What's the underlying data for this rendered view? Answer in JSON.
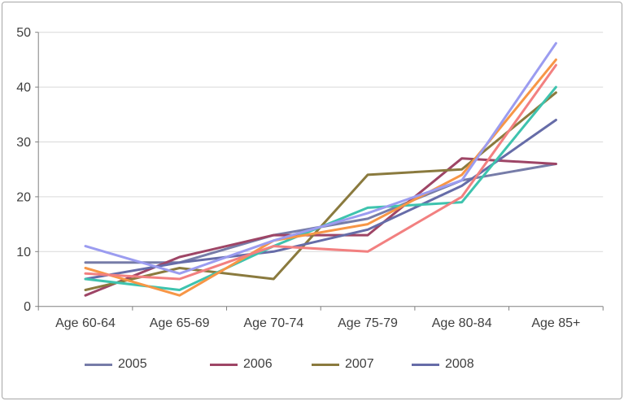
{
  "chart_data": {
    "type": "line",
    "title": "",
    "xlabel": "",
    "ylabel": "",
    "categories": [
      "Age 60-64",
      "Age 65-69",
      "Age 70-74",
      "Age 75-79",
      "Age 80-84",
      "Age 85+"
    ],
    "series": [
      {
        "name": "2005",
        "color": "#767CA8",
        "in_legend": true,
        "values": [
          8,
          8,
          13,
          16,
          23,
          26
        ]
      },
      {
        "name": "2006",
        "color": "#9E4566",
        "in_legend": true,
        "values": [
          2,
          9,
          13,
          13,
          27,
          26
        ]
      },
      {
        "name": "2007",
        "color": "#8A7A3E",
        "in_legend": true,
        "values": [
          3,
          7,
          5,
          24,
          25,
          39
        ]
      },
      {
        "name": "2008",
        "color": "#666CA8",
        "in_legend": true,
        "values": [
          5,
          8,
          10,
          14,
          22,
          34
        ]
      },
      {
        "name": "",
        "color": "#3EC3AE",
        "in_legend": false,
        "values": [
          5,
          3,
          11,
          18,
          19,
          40
        ]
      },
      {
        "name": "",
        "color": "#F79646",
        "in_legend": false,
        "values": [
          7,
          2,
          12,
          15,
          24,
          45
        ]
      },
      {
        "name": "",
        "color": "#F28080",
        "in_legend": false,
        "values": [
          6,
          5,
          11,
          10,
          20,
          44
        ]
      },
      {
        "name": "",
        "color": "#9B9CF0",
        "in_legend": false,
        "values": [
          11,
          6,
          12,
          17,
          23,
          48
        ]
      }
    ],
    "ylim": [
      0,
      50
    ],
    "yticks": [
      0,
      10,
      20,
      30,
      40,
      50
    ],
    "y_tick_labels": [
      "0",
      "10",
      "20",
      "30",
      "40",
      "50"
    ],
    "grid": true,
    "legend_position": "bottom",
    "legend_labels": [
      "2005",
      "2006",
      "2007",
      "2008"
    ]
  },
  "colors": {
    "axis": "#808080",
    "gridline": "#D9D9D9",
    "text": "#3F3F3F",
    "frame_border": "#A6A6A6",
    "background": "#FFFFFF"
  }
}
